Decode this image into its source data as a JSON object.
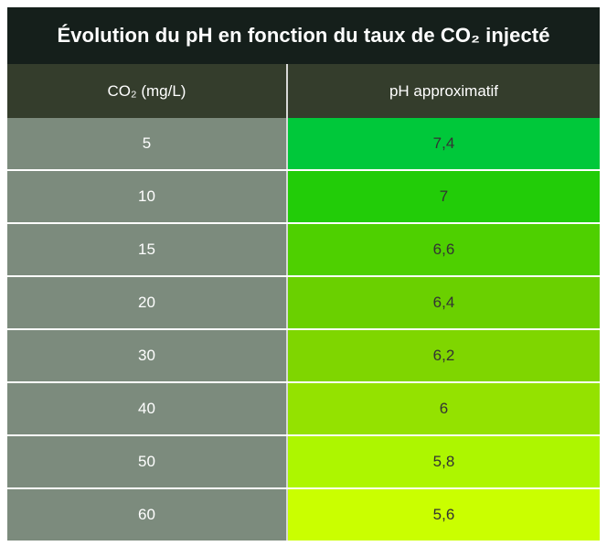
{
  "chart_data": {
    "type": "table",
    "title": "Évolution du pH en fonction du taux de CO₂ injecté",
    "columns": [
      "CO₂ (mg/L)",
      "pH approximatif"
    ],
    "rows": [
      {
        "co2": "5",
        "ph": "7,4",
        "color": "#00c83a"
      },
      {
        "co2": "10",
        "ph": "7",
        "color": "#22cc08"
      },
      {
        "co2": "15",
        "ph": "6,6",
        "color": "#4ed000"
      },
      {
        "co2": "20",
        "ph": "6,4",
        "color": "#6ad000"
      },
      {
        "co2": "30",
        "ph": "6,2",
        "color": "#7fd600"
      },
      {
        "co2": "40",
        "ph": "6",
        "color": "#94e200"
      },
      {
        "co2": "50",
        "ph": "5,8",
        "color": "#adf600"
      },
      {
        "co2": "60",
        "ph": "5,6",
        "color": "#caff00"
      }
    ]
  }
}
